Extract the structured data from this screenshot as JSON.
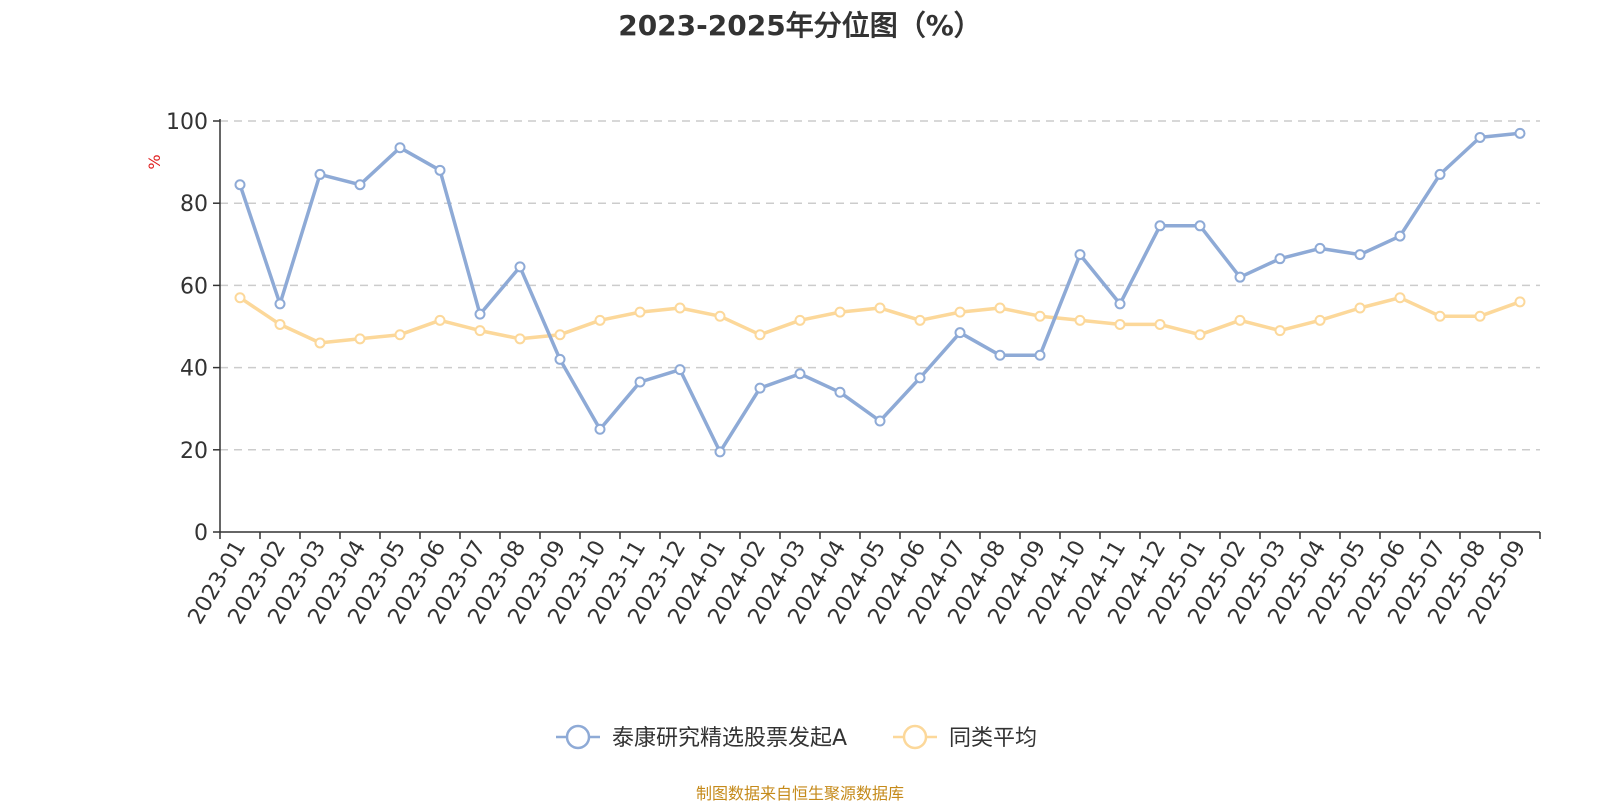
{
  "chart_data": {
    "type": "line",
    "title": "2023-2025年分位图（%）",
    "ylabel": "%",
    "ylim": [
      0,
      100
    ],
    "yticks": [
      0,
      20,
      40,
      60,
      80,
      100
    ],
    "grid": true,
    "legend_position": "bottom",
    "categories": [
      "2023-01",
      "2023-02",
      "2023-03",
      "2023-04",
      "2023-05",
      "2023-06",
      "2023-07",
      "2023-08",
      "2023-09",
      "2023-10",
      "2023-11",
      "2023-12",
      "2024-01",
      "2024-02",
      "2024-03",
      "2024-04",
      "2024-05",
      "2024-06",
      "2024-07",
      "2024-08",
      "2024-09",
      "2024-10",
      "2024-11",
      "2024-12",
      "2025-01",
      "2025-02",
      "2025-03",
      "2025-04",
      "2025-05",
      "2025-06",
      "2025-07",
      "2025-08",
      "2025-09"
    ],
    "series": [
      {
        "name": "泰康研究精选股票发起A",
        "color": "#8eaad6",
        "values": [
          84.5,
          55.5,
          87,
          84.5,
          93.5,
          88,
          53,
          64.5,
          42,
          25,
          36.5,
          39.5,
          19.5,
          35,
          38.5,
          34,
          27,
          37.5,
          48.5,
          43,
          43,
          67.5,
          55.5,
          74.5,
          74.5,
          62,
          66.5,
          69,
          67.5,
          72,
          87,
          96,
          97
        ]
      },
      {
        "name": "同类平均",
        "color": "#fcd89a",
        "values": [
          57,
          50.5,
          46,
          47,
          48,
          51.5,
          49,
          47,
          48,
          51.5,
          53.5,
          54.5,
          52.5,
          48,
          51.5,
          53.5,
          54.5,
          51.5,
          53.5,
          54.5,
          52.5,
          51.5,
          50.5,
          50.5,
          48,
          51.5,
          49,
          51.5,
          54.5,
          57,
          52.5,
          52.5,
          56
        ]
      }
    ]
  },
  "source_text": "制图数据来自恒生聚源数据库"
}
